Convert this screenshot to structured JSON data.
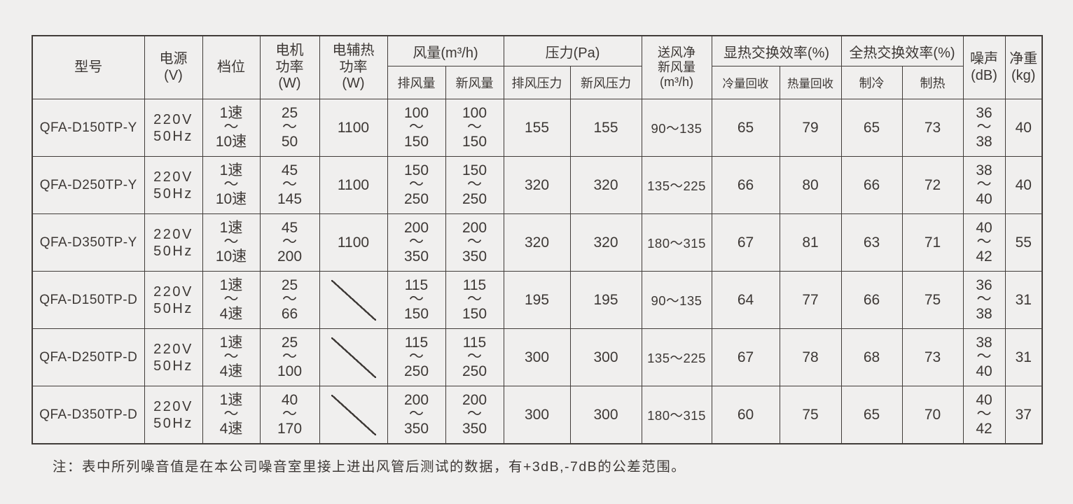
{
  "page": {
    "background_color": "#f0efee",
    "text_color": "#3d3835",
    "border_color": "#413c39"
  },
  "table": {
    "header": {
      "model": "型号",
      "power": "电源\n(V)",
      "gear": "档位",
      "motor": "电机\n功率\n(W)",
      "aux_heat": "电辅热\n功率\n(W)",
      "air_volume_group": "风量(m³/h)",
      "exhaust_volume": "排风量",
      "fresh_volume": "新风量",
      "pressure_group": "压力(Pa)",
      "exhaust_pressure": "排风压力",
      "fresh_pressure": "新风压力",
      "net_fresh": "送风净\n新风量\n(m³/h)",
      "sensible_group": "显热交换效率(%)",
      "cool_recovery": "冷量回收",
      "heat_recovery": "热量回收",
      "total_group": "全热交换效率(%)",
      "cooling": "制冷",
      "heating": "制热",
      "noise": "噪声\n(dB)",
      "weight": "净重\n(kg)"
    },
    "rows": [
      {
        "model": "QFA-D150TP-Y",
        "power": "220V\n50Hz",
        "gear": "1速\n～\n10速",
        "motor": "25\n～\n50",
        "aux": "1100",
        "exhaust_vol": "100\n～\n150",
        "fresh_vol": "100\n～\n150",
        "exhaust_pres": "155",
        "fresh_pres": "155",
        "net_fresh": "90～135",
        "cool_rec": "65",
        "heat_rec": "79",
        "cooling": "65",
        "heating": "73",
        "noise": "36\n～\n38",
        "weight": "40"
      },
      {
        "model": "QFA-D250TP-Y",
        "power": "220V\n50Hz",
        "gear": "1速\n～\n10速",
        "motor": "45\n～\n145",
        "aux": "1100",
        "exhaust_vol": "150\n～\n250",
        "fresh_vol": "150\n～\n250",
        "exhaust_pres": "320",
        "fresh_pres": "320",
        "net_fresh": "135～225",
        "cool_rec": "66",
        "heat_rec": "80",
        "cooling": "66",
        "heating": "72",
        "noise": "38\n～\n40",
        "weight": "40"
      },
      {
        "model": "QFA-D350TP-Y",
        "power": "220V\n50Hz",
        "gear": "1速\n～\n10速",
        "motor": "45\n～\n200",
        "aux": "1100",
        "exhaust_vol": "200\n～\n350",
        "fresh_vol": "200\n～\n350",
        "exhaust_pres": "320",
        "fresh_pres": "320",
        "net_fresh": "180～315",
        "cool_rec": "67",
        "heat_rec": "81",
        "cooling": "63",
        "heating": "71",
        "noise": "40\n～\n42",
        "weight": "55"
      },
      {
        "model": "QFA-D150TP-D",
        "power": "220V\n50Hz",
        "gear": "1速\n～\n4速",
        "motor": "25\n～\n66",
        "aux": "/",
        "exhaust_vol": "115\n～\n150",
        "fresh_vol": "115\n～\n150",
        "exhaust_pres": "195",
        "fresh_pres": "195",
        "net_fresh": "90～135",
        "cool_rec": "64",
        "heat_rec": "77",
        "cooling": "66",
        "heating": "75",
        "noise": "36\n～\n38",
        "weight": "31"
      },
      {
        "model": "QFA-D250TP-D",
        "power": "220V\n50Hz",
        "gear": "1速\n～\n4速",
        "motor": "25\n～\n100",
        "aux": "/",
        "exhaust_vol": "115\n～\n250",
        "fresh_vol": "115\n～\n250",
        "exhaust_pres": "300",
        "fresh_pres": "300",
        "net_fresh": "135～225",
        "cool_rec": "67",
        "heat_rec": "78",
        "cooling": "68",
        "heating": "73",
        "noise": "38\n～\n40",
        "weight": "31"
      },
      {
        "model": "QFA-D350TP-D",
        "power": "220V\n50Hz",
        "gear": "1速\n～\n4速",
        "motor": "40\n～\n170",
        "aux": "/",
        "exhaust_vol": "200\n～\n350",
        "fresh_vol": "200\n～\n350",
        "exhaust_pres": "300",
        "fresh_pres": "300",
        "net_fresh": "180～315",
        "cool_rec": "60",
        "heat_rec": "75",
        "cooling": "65",
        "heating": "70",
        "noise": "40\n～\n42",
        "weight": "37"
      }
    ]
  },
  "note": "注：表中所列噪音值是在本公司噪音室里接上进出风管后测试的数据，有+3dB,-7dB的公差范围。"
}
